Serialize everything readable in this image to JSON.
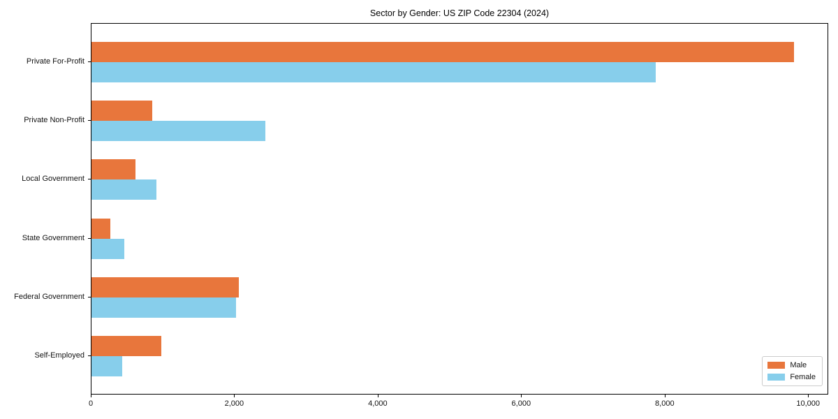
{
  "chart_data": {
    "type": "bar",
    "orientation": "horizontal",
    "title": "Sector by Gender: US ZIP Code 22304 (2024)",
    "categories": [
      "Private For-Profit",
      "Private Non-Profit",
      "Local Government",
      "State Government",
      "Federal Government",
      "Self-Employed"
    ],
    "series": [
      {
        "name": "Male",
        "color": "#E8763C",
        "values": [
          9790,
          850,
          615,
          265,
          2050,
          975
        ]
      },
      {
        "name": "Female",
        "color": "#87CEEB",
        "values": [
          7870,
          2420,
          900,
          460,
          2010,
          430
        ]
      }
    ],
    "xlabel": "",
    "ylabel": "",
    "xlim": [
      0,
      10280
    ],
    "x_ticks": [
      0,
      2000,
      4000,
      6000,
      8000,
      10000
    ],
    "x_tick_labels": [
      "0",
      "2,000",
      "4,000",
      "6,000",
      "8,000",
      "10,000"
    ],
    "grid": false,
    "legend": {
      "position": "lower right",
      "entries": [
        "Male",
        "Female"
      ]
    }
  }
}
